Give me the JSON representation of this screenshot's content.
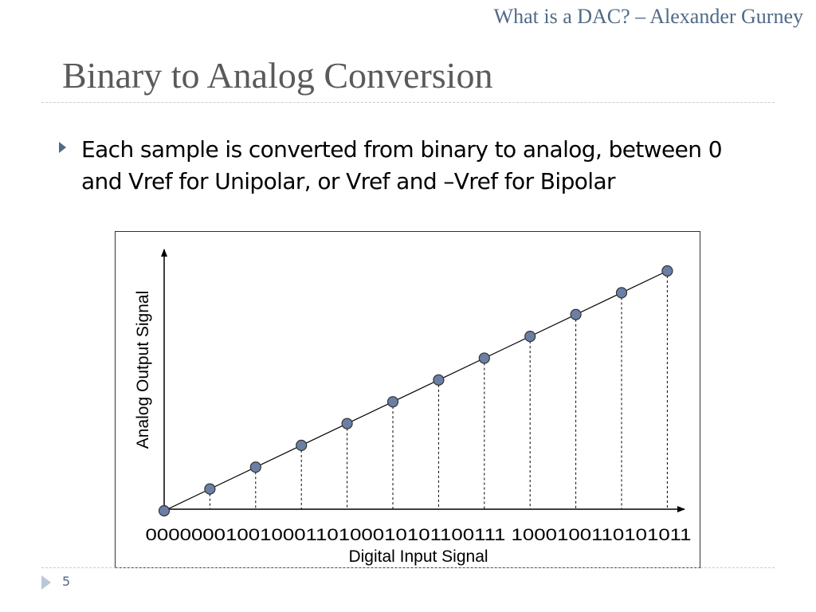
{
  "header": {
    "title": "What is a DAC? – Alexander Gurney"
  },
  "slide": {
    "title": "Binary to Analog Conversion",
    "bullet": "Each sample is converted from binary to analog, between 0 and Vref for Unipolar, or Vref and –Vref for Bipolar",
    "page_number": "5"
  },
  "chart_data": {
    "type": "scatter",
    "xlabel": "Digital Input Signal",
    "ylabel": "Analog Output Signal",
    "tick_labels_text": "00000001001000110100010101100111 1000100110101011",
    "categories": [
      "0000",
      "0001",
      "0010",
      "0011",
      "0100",
      "0101",
      "0110",
      "0111",
      "1000",
      "1001",
      "1010",
      "1011"
    ],
    "values": [
      0,
      1,
      2,
      3,
      4,
      5,
      6,
      7,
      8,
      9,
      10,
      11
    ],
    "ylim": [
      0,
      11
    ],
    "grid": false,
    "legend": false,
    "colors": {
      "marker_fill": "#6b7fa6",
      "marker_stroke": "#333333",
      "line": "#000000"
    }
  }
}
